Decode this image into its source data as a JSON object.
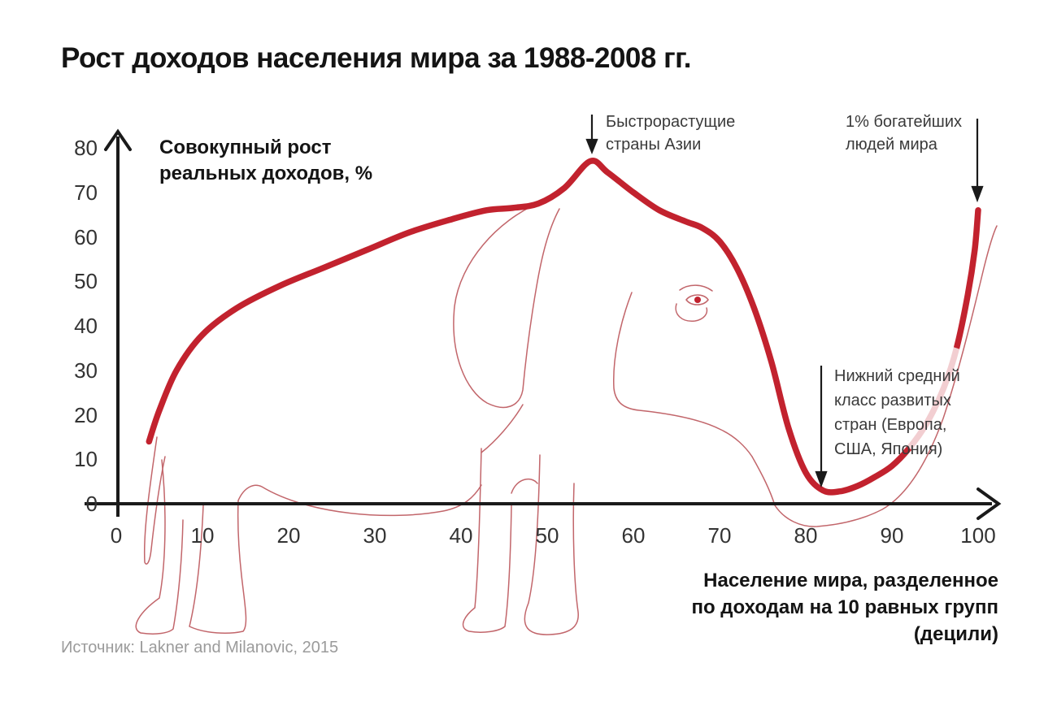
{
  "title": "Рост доходов населения мира за 1988-2008 гг.",
  "source": "Источник: Lakner and Milanovic, 2015",
  "colors": {
    "curve": "#c2222e",
    "elephant_outline": "#c2666b",
    "axis": "#1a1a1a",
    "annotation_arrow": "#1a1a1a",
    "tick_text": "#333333",
    "muted_text": "#9b9b9b"
  },
  "y_axis_title_lines": [
    "Совокупный рост",
    "реальных доходов, %"
  ],
  "x_axis_title_lines": [
    "Население мира, разделенное",
    "по доходам на 10 равных групп",
    "(децили)"
  ],
  "annotations": {
    "asia": {
      "lines": [
        "Быстрорастущие",
        "страны Азии"
      ]
    },
    "rich": {
      "lines": [
        "1% богатейших",
        "людей мира"
      ]
    },
    "middle": {
      "lines": [
        "Нижний средний",
        "класс развитых",
        "стран (Европа,",
        "США, Япония)"
      ]
    }
  },
  "chart_data": {
    "type": "line",
    "title": "Рост доходов населения мира за 1988-2008 гг.",
    "xlabel": "Население мира, разделенное по доходам на 10 равных групп (децили)",
    "ylabel": "Совокупный рост реальных доходов, %",
    "xlim": [
      0,
      103
    ],
    "ylim": [
      0,
      80
    ],
    "x_ticks": [
      0,
      10,
      20,
      30,
      40,
      50,
      60,
      70,
      80,
      90,
      100
    ],
    "y_ticks": [
      0,
      10,
      20,
      30,
      40,
      50,
      60,
      70,
      80
    ],
    "grid": false,
    "legend": "none",
    "series": [
      {
        "name": "Совокупный рост реальных доходов, % (1988-2008)",
        "points": [
          [
            3.8,
            14
          ],
          [
            5,
            21
          ],
          [
            7,
            30
          ],
          [
            10,
            38
          ],
          [
            14,
            44
          ],
          [
            19,
            49
          ],
          [
            24,
            53
          ],
          [
            29,
            57
          ],
          [
            34,
            61
          ],
          [
            39,
            64
          ],
          [
            43,
            66
          ],
          [
            46,
            66.5
          ],
          [
            49,
            67.5
          ],
          [
            52,
            71
          ],
          [
            55,
            77
          ],
          [
            57,
            74.5
          ],
          [
            60,
            70
          ],
          [
            63,
            66
          ],
          [
            66,
            63.5
          ],
          [
            68,
            62
          ],
          [
            70,
            59
          ],
          [
            72,
            53
          ],
          [
            74,
            44
          ],
          [
            76,
            32
          ],
          [
            78,
            17
          ],
          [
            80,
            7
          ],
          [
            82,
            3
          ],
          [
            84,
            2.8
          ],
          [
            86,
            4
          ],
          [
            88,
            6
          ],
          [
            90,
            8.5
          ],
          [
            92,
            12.5
          ],
          [
            94,
            18
          ],
          [
            96,
            26
          ],
          [
            97.5,
            35
          ],
          [
            98.8,
            47
          ],
          [
            99.6,
            57
          ],
          [
            100,
            66
          ]
        ]
      }
    ],
    "annotations": [
      {
        "text": "Быстрорастущие страны Азии",
        "x": 55,
        "y": 77
      },
      {
        "text": "1% богатейших людей мира",
        "x": 100,
        "y": 66
      },
      {
        "text": "Нижний средний класс развитых стран (Европа, США, Япония)",
        "x": 82,
        "y": 3
      }
    ]
  }
}
